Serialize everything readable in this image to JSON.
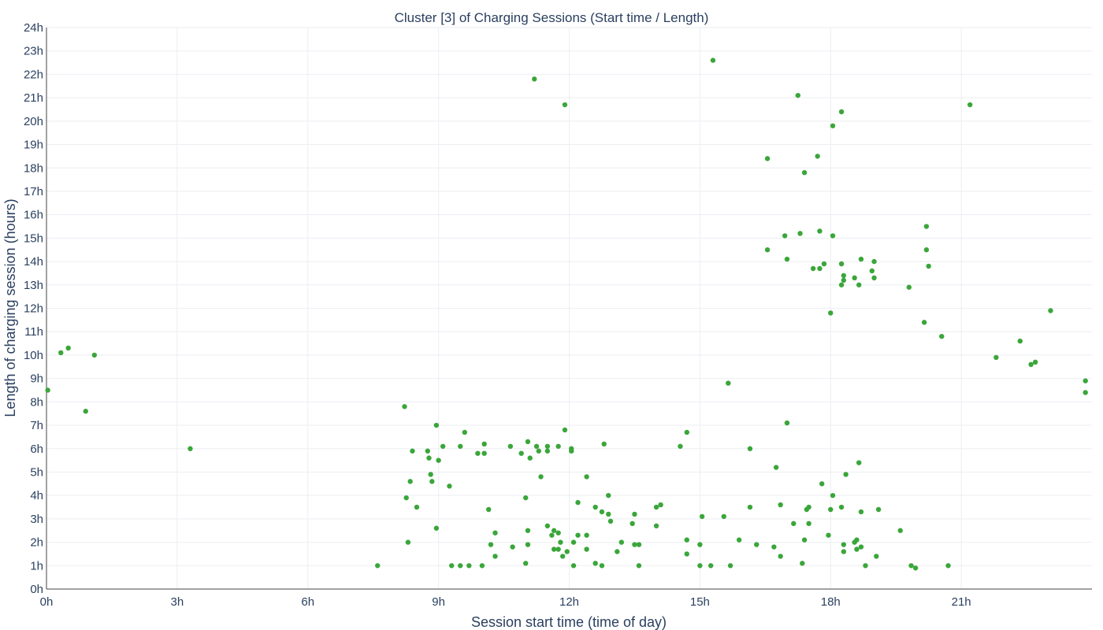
{
  "chart_data": {
    "type": "scatter",
    "title": "Cluster [3] of Charging Sessions (Start time / Length)",
    "xlabel": "Session start time (time of day)",
    "ylabel": "Length of charging session (hours)",
    "xlim": [
      0,
      24
    ],
    "ylim": [
      0,
      24
    ],
    "x_ticks": [
      0,
      3,
      6,
      9,
      12,
      15,
      18,
      21
    ],
    "x_tick_labels": [
      "0h",
      "3h",
      "6h",
      "9h",
      "12h",
      "15h",
      "18h",
      "21h"
    ],
    "y_ticks": [
      0,
      1,
      2,
      3,
      4,
      5,
      6,
      7,
      8,
      9,
      10,
      11,
      12,
      13,
      14,
      15,
      16,
      17,
      18,
      19,
      20,
      21,
      22,
      23,
      24
    ],
    "y_tick_labels": [
      "0h",
      "1h",
      "2h",
      "3h",
      "4h",
      "5h",
      "6h",
      "7h",
      "8h",
      "9h",
      "10h",
      "11h",
      "12h",
      "13h",
      "14h",
      "15h",
      "16h",
      "17h",
      "18h",
      "19h",
      "20h",
      "21h",
      "22h",
      "23h",
      "24h"
    ],
    "grid": true,
    "color": "#3aa63a",
    "points": [
      [
        0.03,
        8.5
      ],
      [
        0.33,
        10.1
      ],
      [
        0.5,
        10.3
      ],
      [
        0.9,
        7.6
      ],
      [
        1.1,
        10.0
      ],
      [
        3.3,
        6.0
      ],
      [
        7.6,
        1.0
      ],
      [
        8.22,
        7.8
      ],
      [
        8.26,
        3.9
      ],
      [
        8.3,
        2.0
      ],
      [
        8.35,
        4.6
      ],
      [
        8.4,
        5.9
      ],
      [
        8.5,
        3.5
      ],
      [
        8.75,
        5.9
      ],
      [
        8.78,
        5.6
      ],
      [
        8.82,
        4.9
      ],
      [
        8.85,
        4.6
      ],
      [
        8.95,
        2.6
      ],
      [
        8.95,
        7.0
      ],
      [
        9.0,
        5.5
      ],
      [
        9.1,
        6.1
      ],
      [
        9.25,
        4.4
      ],
      [
        9.3,
        1.0
      ],
      [
        9.5,
        1.0
      ],
      [
        9.5,
        6.1
      ],
      [
        9.6,
        6.7
      ],
      [
        9.7,
        1.0
      ],
      [
        9.9,
        5.8
      ],
      [
        10.0,
        1.0
      ],
      [
        10.05,
        5.8
      ],
      [
        10.05,
        6.2
      ],
      [
        10.15,
        3.4
      ],
      [
        10.2,
        1.9
      ],
      [
        10.3,
        1.4
      ],
      [
        10.3,
        2.4
      ],
      [
        10.65,
        6.1
      ],
      [
        10.7,
        1.8
      ],
      [
        10.9,
        5.8
      ],
      [
        11.0,
        1.1
      ],
      [
        11.0,
        3.9
      ],
      [
        11.05,
        2.5
      ],
      [
        11.05,
        1.9
      ],
      [
        11.05,
        6.3
      ],
      [
        11.1,
        5.6
      ],
      [
        11.25,
        6.1
      ],
      [
        11.3,
        5.9
      ],
      [
        11.35,
        4.8
      ],
      [
        11.5,
        2.7
      ],
      [
        11.5,
        6.1
      ],
      [
        11.5,
        5.9
      ],
      [
        11.6,
        2.3
      ],
      [
        11.65,
        1.7
      ],
      [
        11.65,
        2.5
      ],
      [
        11.75,
        1.7
      ],
      [
        11.75,
        2.4
      ],
      [
        11.75,
        6.1
      ],
      [
        11.8,
        2.0
      ],
      [
        11.85,
        1.4
      ],
      [
        11.9,
        6.8
      ],
      [
        11.95,
        1.6
      ],
      [
        12.05,
        6.0
      ],
      [
        12.05,
        5.9
      ],
      [
        12.1,
        1.0
      ],
      [
        12.1,
        2.0
      ],
      [
        12.2,
        3.7
      ],
      [
        12.2,
        2.3
      ],
      [
        12.4,
        4.8
      ],
      [
        12.4,
        2.3
      ],
      [
        12.4,
        1.7
      ],
      [
        12.6,
        1.1
      ],
      [
        12.6,
        3.5
      ],
      [
        12.75,
        3.3
      ],
      [
        12.75,
        1.0
      ],
      [
        12.8,
        6.2
      ],
      [
        12.9,
        3.2
      ],
      [
        12.9,
        4.0
      ],
      [
        12.95,
        2.9
      ],
      [
        13.1,
        1.6
      ],
      [
        13.2,
        2.0
      ],
      [
        13.45,
        2.8
      ],
      [
        13.5,
        3.2
      ],
      [
        13.5,
        1.9
      ],
      [
        13.6,
        1.9
      ],
      [
        13.6,
        1.0
      ],
      [
        14.0,
        3.5
      ],
      [
        14.0,
        2.7
      ],
      [
        14.1,
        3.6
      ],
      [
        14.55,
        6.1
      ],
      [
        14.7,
        6.7
      ],
      [
        14.7,
        2.1
      ],
      [
        14.7,
        1.5
      ],
      [
        15.0,
        1.9
      ],
      [
        15.0,
        1.0
      ],
      [
        15.05,
        3.1
      ],
      [
        15.25,
        1.0
      ],
      [
        15.55,
        3.1
      ],
      [
        15.7,
        1.0
      ],
      [
        15.9,
        2.1
      ],
      [
        16.15,
        6.0
      ],
      [
        16.15,
        3.5
      ],
      [
        16.3,
        1.9
      ],
      [
        16.7,
        1.8
      ],
      [
        16.75,
        5.2
      ],
      [
        16.85,
        1.4
      ],
      [
        16.85,
        3.6
      ],
      [
        17.0,
        7.1
      ],
      [
        17.15,
        2.8
      ],
      [
        17.35,
        1.1
      ],
      [
        17.4,
        2.1
      ],
      [
        17.45,
        3.4
      ],
      [
        17.5,
        2.8
      ],
      [
        17.5,
        3.5
      ],
      [
        17.8,
        4.5
      ],
      [
        17.95,
        2.3
      ],
      [
        18.0,
        3.4
      ],
      [
        18.05,
        4.0
      ],
      [
        18.25,
        3.5
      ],
      [
        18.3,
        1.9
      ],
      [
        18.3,
        1.6
      ],
      [
        18.35,
        4.9
      ],
      [
        18.55,
        2.0
      ],
      [
        18.6,
        1.7
      ],
      [
        18.6,
        2.1
      ],
      [
        18.65,
        5.4
      ],
      [
        18.7,
        1.8
      ],
      [
        18.7,
        3.3
      ],
      [
        18.8,
        1.0
      ],
      [
        19.05,
        1.4
      ],
      [
        19.1,
        3.4
      ],
      [
        19.6,
        2.5
      ],
      [
        19.85,
        1.0
      ],
      [
        19.95,
        0.9
      ],
      [
        20.7,
        1.0
      ],
      [
        11.2,
        21.8
      ],
      [
        11.9,
        20.7
      ],
      [
        15.3,
        22.6
      ],
      [
        16.55,
        18.4
      ],
      [
        16.55,
        14.5
      ],
      [
        16.95,
        15.1
      ],
      [
        17.0,
        14.1
      ],
      [
        17.25,
        21.1
      ],
      [
        17.3,
        15.2
      ],
      [
        17.4,
        17.8
      ],
      [
        17.6,
        13.7
      ],
      [
        17.7,
        18.5
      ],
      [
        17.75,
        15.3
      ],
      [
        17.75,
        13.7
      ],
      [
        17.85,
        13.9
      ],
      [
        18.0,
        11.8
      ],
      [
        18.05,
        19.8
      ],
      [
        18.05,
        15.1
      ],
      [
        18.25,
        20.4
      ],
      [
        18.25,
        13.9
      ],
      [
        18.3,
        13.4
      ],
      [
        18.3,
        13.2
      ],
      [
        18.25,
        13.0
      ],
      [
        18.55,
        13.3
      ],
      [
        18.65,
        13.0
      ],
      [
        18.7,
        14.1
      ],
      [
        18.95,
        13.6
      ],
      [
        19.0,
        14.0
      ],
      [
        19.0,
        13.3
      ],
      [
        19.8,
        12.9
      ],
      [
        20.15,
        11.4
      ],
      [
        20.2,
        15.5
      ],
      [
        20.2,
        14.5
      ],
      [
        20.25,
        13.8
      ],
      [
        20.55,
        10.8
      ],
      [
        21.2,
        20.7
      ],
      [
        21.8,
        9.9
      ],
      [
        22.35,
        10.6
      ],
      [
        22.6,
        9.6
      ],
      [
        22.7,
        9.7
      ],
      [
        23.05,
        11.9
      ],
      [
        23.85,
        8.9
      ],
      [
        23.85,
        8.4
      ],
      [
        15.65,
        8.8
      ]
    ]
  }
}
